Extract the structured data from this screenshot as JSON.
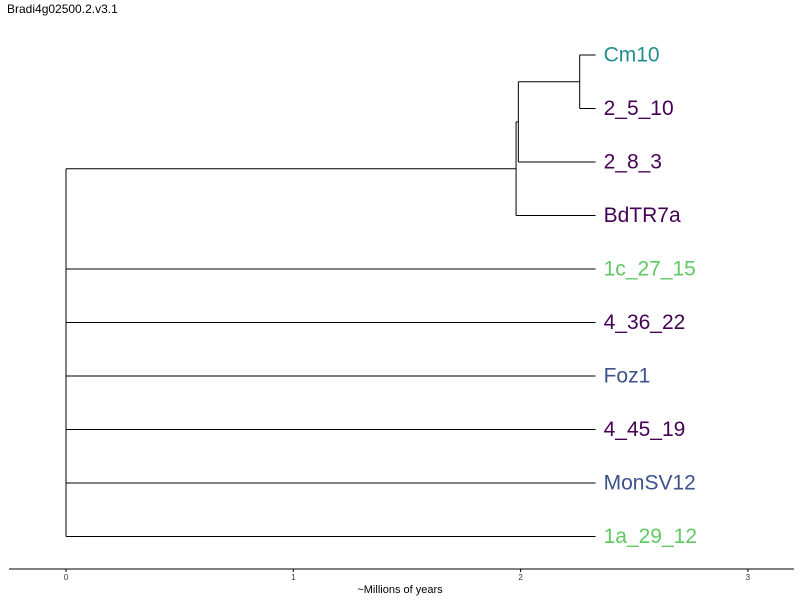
{
  "title": "Bradi4g02500.2.v3.1",
  "colors": {
    "dark_purple": "#440154",
    "teal": "#21908c",
    "green": "#5ec962",
    "blue": "#3b528b"
  },
  "chart_data": {
    "type": "dendrogram",
    "xlabel": "~Millions of years",
    "xlim": [
      -0.25,
      3.2
    ],
    "ticks": [
      0,
      1,
      2,
      3
    ],
    "leaves": [
      {
        "name": "Cm10",
        "color": "#21908c"
      },
      {
        "name": "2_5_10",
        "color": "#440154"
      },
      {
        "name": "2_8_3",
        "color": "#440154"
      },
      {
        "name": "BdTR7a",
        "color": "#440154"
      },
      {
        "name": "1c_27_15",
        "color": "#5ec962"
      },
      {
        "name": "4_36_22",
        "color": "#440154"
      },
      {
        "name": "Foz1",
        "color": "#3b528b"
      },
      {
        "name": "4_45_19",
        "color": "#440154"
      },
      {
        "name": "MonSV12",
        "color": "#3b528b"
      },
      {
        "name": "1a_29_12",
        "color": "#5ec962"
      }
    ],
    "leaf_depth": 2.33,
    "tree": {
      "depth": 0,
      "children": [
        {
          "depth": 1.98,
          "children": [
            {
              "depth": 1.99,
              "children": [
                {
                  "depth": 2.26,
                  "children": [
                    {
                      "leaf": 0
                    },
                    {
                      "leaf": 1
                    }
                  ]
                },
                {
                  "leaf": 2
                }
              ]
            },
            {
              "leaf": 3
            }
          ]
        },
        {
          "leaf": 4
        },
        {
          "leaf": 5
        },
        {
          "leaf": 6
        },
        {
          "leaf": 7
        },
        {
          "leaf": 8
        },
        {
          "leaf": 9
        }
      ]
    }
  }
}
